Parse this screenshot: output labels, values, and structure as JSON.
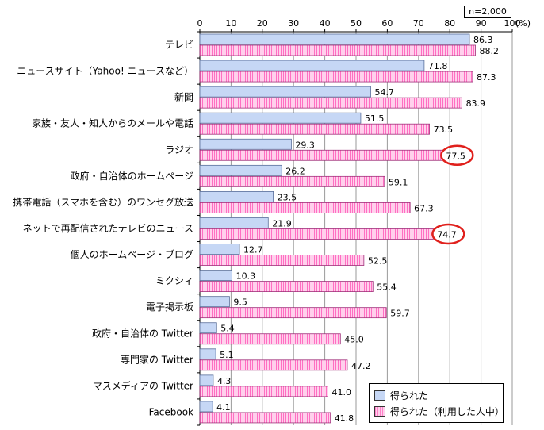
{
  "note": "n=2,000",
  "legend": {
    "series1": "得られた",
    "series2": "得られた（利用した人中）"
  },
  "colors": {
    "series1_fill": "#c6d7f5",
    "series2_fill": "#ff9ad6",
    "highlight_circle": "#e0201c"
  },
  "chart_data": {
    "type": "bar",
    "orientation": "horizontal",
    "axis_unit": "(%)",
    "xlim": [
      0,
      100
    ],
    "x_ticks": [
      "0",
      "10",
      "20",
      "30",
      "40",
      "50",
      "60",
      "70",
      "80",
      "90",
      "100"
    ],
    "categories": [
      "テレビ",
      "ニュースサイト（Yahoo! ニュースなど）",
      "新聞",
      "家族・友人・知人からのメールや電話",
      "ラジオ",
      "政府・自治体のホームページ",
      "携帯電話（スマホを含む）のワンセグ放送",
      "ネットで再配信されたテレビのニュース",
      "個人のホームページ・ブログ",
      "ミクシィ",
      "電子掲示板",
      "政府・自治体の Twitter",
      "専門家の Twitter",
      "マスメディアの Twitter",
      "Facebook"
    ],
    "series": [
      {
        "name": "得られた",
        "values": [
          86.3,
          71.8,
          54.7,
          51.5,
          29.3,
          26.2,
          23.5,
          21.9,
          12.7,
          10.3,
          9.5,
          5.4,
          5.1,
          4.3,
          4.1
        ]
      },
      {
        "name": "得られた（利用した人中）",
        "values": [
          88.2,
          87.3,
          83.9,
          73.5,
          77.5,
          59.1,
          67.3,
          74.7,
          52.5,
          55.4,
          59.7,
          45.0,
          47.2,
          41.0,
          41.8
        ]
      }
    ],
    "value_labels": [
      [
        "86.3",
        "71.8",
        "54.7",
        "51.5",
        "29.3",
        "26.2",
        "23.5",
        "21.9",
        "12.7",
        "10.3",
        "9.5",
        "5.4",
        "5.1",
        "4.3",
        "4.1"
      ],
      [
        "88.2",
        "87.3",
        "83.9",
        "73.5",
        "77.5",
        "59.1",
        "67.3",
        "74.7",
        "52.5",
        "55.4",
        "59.7",
        "45.0",
        "47.2",
        "41.0",
        "41.8"
      ]
    ],
    "highlighted": [
      {
        "series": 1,
        "category_index": 4
      },
      {
        "series": 1,
        "category_index": 7
      }
    ],
    "grid": true,
    "legend_position": "bottom-right"
  }
}
